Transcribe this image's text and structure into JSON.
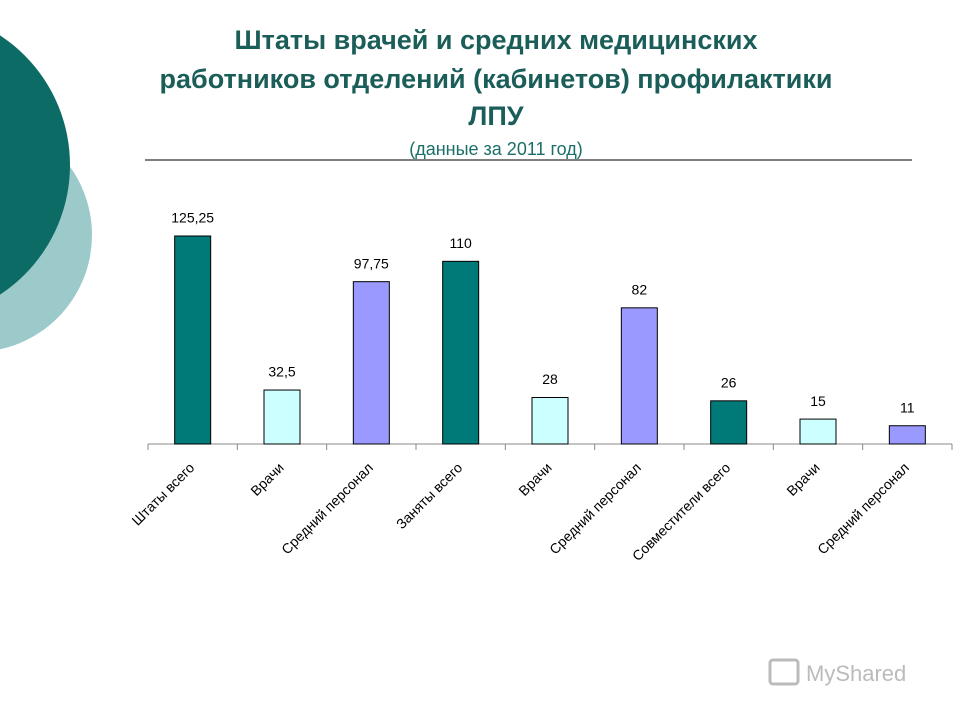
{
  "chart_data": {
    "type": "bar",
    "title": [
      "Штаты врачей и средних медицинских",
      "работников отделений (кабинетов) профилактики",
      "ЛПУ"
    ],
    "subtitle": "(данные за 2011 год)",
    "categories": [
      "Штаты всего",
      "Врачи",
      "Средний персонал",
      "Заняты всего",
      "Врачи",
      "Средний персонал",
      "Совместители всего",
      "Врачи",
      "Средний персонал"
    ],
    "values": [
      125.25,
      32.5,
      97.75,
      110,
      28,
      82,
      26,
      15,
      11
    ],
    "value_labels": [
      "125,25",
      "32,5",
      "97,75",
      "110",
      "28",
      "82",
      "26",
      "15",
      "11"
    ],
    "colors": [
      "#007a78",
      "#ccffff",
      "#9999ff",
      "#007a78",
      "#ccffff",
      "#9999ff",
      "#007a78",
      "#ccffff",
      "#9999ff"
    ]
  },
  "watermark": "MyShared"
}
